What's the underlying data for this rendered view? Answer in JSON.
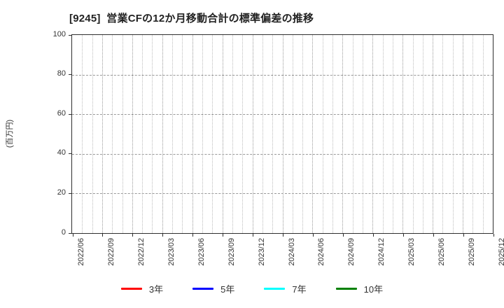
{
  "title": "[9245]  営業CFの12か月移動合計の標準偏差の推移",
  "colors": {
    "grid_major": "#999999",
    "grid_minor": "#bcbcbc",
    "axis_border": "#2f2f2f",
    "text": "#333333",
    "background": "#ffffff"
  },
  "chart_data": {
    "type": "line",
    "title": "[9245]  営業CFの12か月移動合計の標準偏差の推移",
    "xlabel": "",
    "ylabel": "(百万円)",
    "ylim": [
      0,
      100
    ],
    "yticks": [
      0,
      20,
      40,
      60,
      80,
      100
    ],
    "x_tick_labels": [
      "2022/06",
      "2022/09",
      "2022/12",
      "2023/03",
      "2023/06",
      "2023/09",
      "2023/12",
      "2024/03",
      "2024/06",
      "2024/09",
      "2024/12",
      "2025/03",
      "2025/06",
      "2025/09",
      "2025/12"
    ],
    "months_per_labeled_tick": 3,
    "grid": true,
    "grid_style": "dotted-vertical-monthly, dashed-horizontal",
    "legend_position": "bottom-center",
    "series": [
      {
        "name": "3年",
        "color": "#ff0000",
        "values": []
      },
      {
        "name": "5年",
        "color": "#0000ff",
        "values": []
      },
      {
        "name": "7年",
        "color": "#00ffff",
        "values": []
      },
      {
        "name": "10年",
        "color": "#008000",
        "values": []
      }
    ]
  }
}
